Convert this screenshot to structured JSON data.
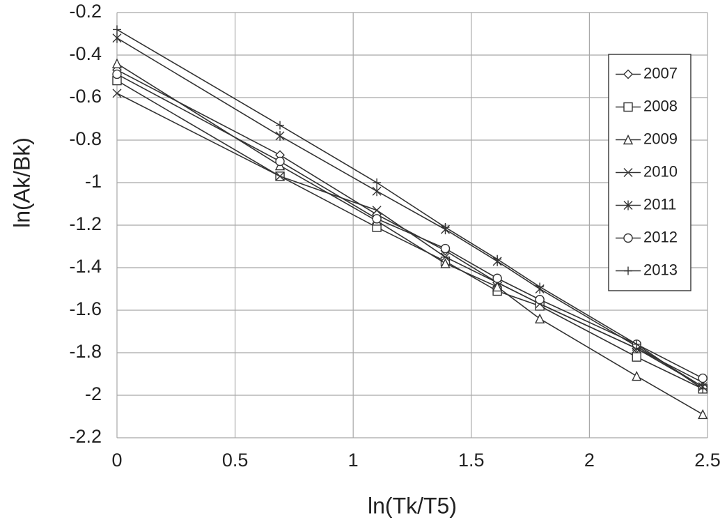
{
  "chart_data": {
    "type": "line",
    "x_label": "ln(Tk/T5)",
    "y_label": "ln(Ak/Bk)",
    "x": [
      0,
      0.69,
      1.1,
      1.39,
      1.61,
      1.79,
      2.2,
      2.48
    ],
    "xlim": [
      0,
      2.5
    ],
    "xticks": [
      0,
      0.5,
      1,
      1.5,
      2,
      2.5
    ],
    "ylim": [
      -2.2,
      -0.2
    ],
    "yticks": [
      -2.2,
      -2,
      -1.8,
      -1.6,
      -1.4,
      -1.2,
      -1,
      -0.8,
      -0.6,
      -0.4,
      -0.2
    ],
    "grid": true,
    "legend": "upper right",
    "series": [
      {
        "name": "2007",
        "marker": "diamond",
        "color": "#333333",
        "values": [
          -0.47,
          -0.87,
          -1.15,
          -1.32,
          -1.47,
          -1.57,
          -1.78,
          -1.96
        ]
      },
      {
        "name": "2008",
        "marker": "square",
        "color": "#333333",
        "values": [
          -0.52,
          -0.97,
          -1.21,
          -1.37,
          -1.51,
          -1.58,
          -1.82,
          -1.97
        ]
      },
      {
        "name": "2009",
        "marker": "triangle",
        "color": "#333333",
        "values": [
          -0.44,
          -0.92,
          -1.18,
          -1.38,
          -1.49,
          -1.64,
          -1.91,
          -2.09
        ]
      },
      {
        "name": "2010",
        "marker": "x",
        "color": "#333333",
        "values": [
          -0.58,
          -0.97,
          -1.13,
          -1.35,
          -1.47,
          -1.57,
          -1.78,
          -1.94
        ]
      },
      {
        "name": "2011",
        "marker": "star",
        "color": "#333333",
        "values": [
          -0.32,
          -0.78,
          -1.04,
          -1.22,
          -1.37,
          -1.5,
          -1.77,
          -1.96
        ]
      },
      {
        "name": "2012",
        "marker": "circle",
        "color": "#333333",
        "values": [
          -0.49,
          -0.9,
          -1.17,
          -1.31,
          -1.45,
          -1.55,
          -1.76,
          -1.92
        ]
      },
      {
        "name": "2013",
        "marker": "plus",
        "color": "#333333",
        "values": [
          -0.28,
          -0.73,
          -1.0,
          -1.21,
          -1.36,
          -1.49,
          -1.76,
          -1.97
        ]
      }
    ]
  }
}
